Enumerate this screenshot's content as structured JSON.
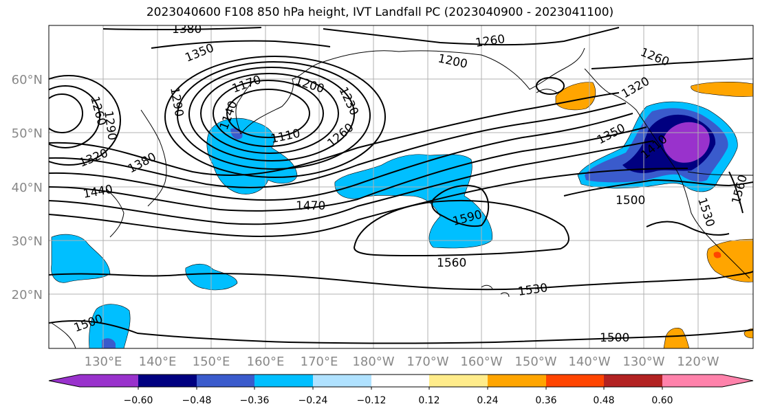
{
  "title": "2023040600 F108 850 hPa height, IVT Landfall PC (2023040900 - 2023041100)",
  "lat_labels": [
    "60°N",
    "50°N",
    "40°N",
    "30°N",
    "20°N"
  ],
  "lon_labels": [
    "130°E",
    "140°E",
    "150°E",
    "160°E",
    "170°E",
    "180°W",
    "170°W",
    "160°W",
    "150°W",
    "140°W",
    "130°W",
    "120°W"
  ],
  "contour_labels": [
    "1380",
    "1350",
    "1260",
    "1200",
    "1260",
    "1170",
    "1200",
    "1230",
    "1290",
    "1260",
    "1290",
    "1320",
    "1110",
    "1380",
    "1260",
    "1350",
    "1410",
    "1320",
    "1140",
    "1470",
    "1590",
    "1500",
    "1440",
    "1560",
    "1530",
    "1560",
    "1500",
    "1500",
    "1530"
  ],
  "colorbar": {
    "colors": [
      "#9932cc",
      "#000080",
      "#3a5bcc",
      "#00bfff",
      "#b0e2ff",
      "#ffffff",
      "#ffec8b",
      "#ffa500",
      "#ff4500",
      "#b22222",
      "#ff82ab"
    ],
    "tick_labels": [
      "−0.60",
      "−0.48",
      "−0.36",
      "−0.24",
      "−0.12",
      "0.12",
      "0.24",
      "0.36",
      "0.48",
      "0.60"
    ]
  },
  "colors": {
    "grid": "#b0b0b0",
    "coast": "#000000",
    "axis_label": "#888888"
  }
}
